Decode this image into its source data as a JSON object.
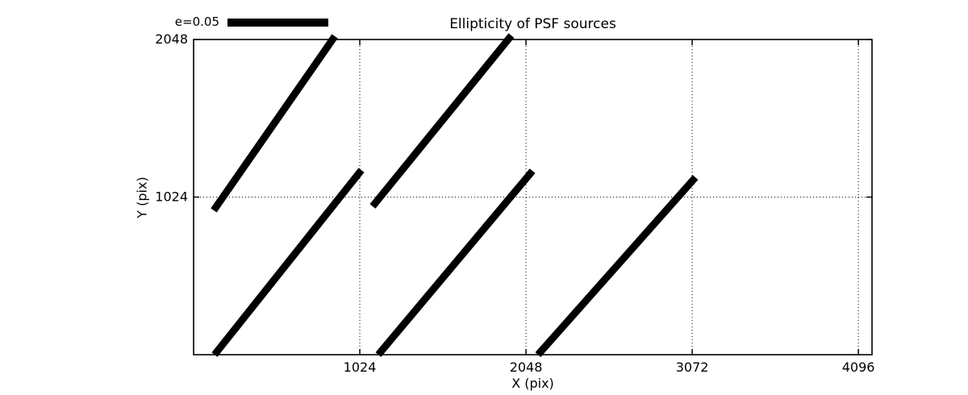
{
  "chart_data": {
    "type": "whisker",
    "title": "Ellipticity of PSF sources",
    "xlabel": "X (pix)",
    "ylabel": "Y (pix)",
    "xlim": [
      0,
      4180
    ],
    "ylim": [
      0,
      2048
    ],
    "xticks": [
      1024,
      2048,
      3072,
      4096
    ],
    "yticks": [
      1024,
      2048
    ],
    "grid": "dotted",
    "legend": {
      "label": "e=0.05",
      "position": "upper-left-outside"
    },
    "colors": {
      "line": "#000000",
      "background": "#ffffff"
    },
    "whiskers": [
      {
        "x1": 124,
        "y1": 938,
        "x2": 870,
        "y2": 2069
      },
      {
        "x1": 1103,
        "y1": 964,
        "x2": 1958,
        "y2": 2074
      },
      {
        "x1": 129,
        "y1": 0,
        "x2": 1034,
        "y2": 1199
      },
      {
        "x1": 1138,
        "y1": 0,
        "x2": 2088,
        "y2": 1194
      },
      {
        "x1": 2122,
        "y1": 0,
        "x2": 3092,
        "y2": 1152
      }
    ]
  }
}
